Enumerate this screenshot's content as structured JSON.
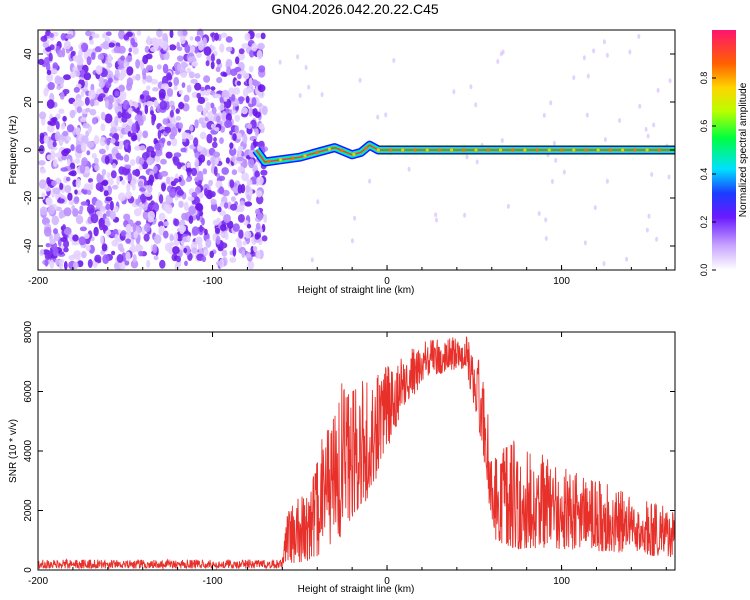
{
  "title": "GN04.2026.042.20.22.C45",
  "chart_data": [
    {
      "type": "heatmap",
      "xlabel": "Height of straight line (km)",
      "ylabel": "Frequency (Hz)",
      "xlim": [
        -200,
        165
      ],
      "ylim": [
        -50,
        50
      ],
      "xticks": [
        -200,
        -100,
        0,
        100
      ],
      "yticks": [
        -40,
        -20,
        0,
        20,
        40
      ],
      "colorbar": {
        "label": "Normalized spectral amplitude",
        "range": [
          0,
          1
        ],
        "ticks": [
          0.0,
          0.2,
          0.4,
          0.6,
          0.8
        ]
      },
      "noise_region_xlim": [
        -200,
        -68
      ],
      "signal_track": [
        {
          "x": -75,
          "y": 0
        },
        {
          "x": -70,
          "y": -5
        },
        {
          "x": -60,
          "y": -4
        },
        {
          "x": -50,
          "y": -3
        },
        {
          "x": -40,
          "y": -1
        },
        {
          "x": -30,
          "y": 1
        },
        {
          "x": -20,
          "y": -2
        },
        {
          "x": -15,
          "y": -1
        },
        {
          "x": -10,
          "y": 2
        },
        {
          "x": -5,
          "y": 0
        },
        {
          "x": 0,
          "y": 0
        },
        {
          "x": 50,
          "y": 0
        },
        {
          "x": 100,
          "y": 0
        },
        {
          "x": 165,
          "y": 0
        }
      ]
    },
    {
      "type": "line",
      "xlabel": "Height of straight line (km)",
      "ylabel": "SNR (10 * v/v)",
      "xlim": [
        -200,
        165
      ],
      "ylim": [
        0,
        8000
      ],
      "xticks": [
        -200,
        -100,
        0,
        100
      ],
      "yticks": [
        0,
        2000,
        4000,
        6000,
        8000
      ],
      "series": [
        {
          "name": "SNR",
          "color": "#e8302a",
          "envelope": [
            {
              "x": -200,
              "low": 50,
              "high": 350
            },
            {
              "x": -60,
              "low": 50,
              "high": 350
            },
            {
              "x": -57,
              "low": 200,
              "high": 2300
            },
            {
              "x": -45,
              "low": 300,
              "high": 2600
            },
            {
              "x": -30,
              "low": 800,
              "high": 6400
            },
            {
              "x": -10,
              "low": 2500,
              "high": 6400
            },
            {
              "x": 10,
              "low": 5500,
              "high": 7300
            },
            {
              "x": 25,
              "low": 6500,
              "high": 7800
            },
            {
              "x": 45,
              "low": 6800,
              "high": 7900
            },
            {
              "x": 55,
              "low": 4000,
              "high": 6800
            },
            {
              "x": 60,
              "low": 1000,
              "high": 4200
            },
            {
              "x": 75,
              "low": 700,
              "high": 4400
            },
            {
              "x": 100,
              "low": 700,
              "high": 3500
            },
            {
              "x": 130,
              "low": 600,
              "high": 2800
            },
            {
              "x": 165,
              "low": 400,
              "high": 2000
            }
          ]
        }
      ]
    }
  ]
}
